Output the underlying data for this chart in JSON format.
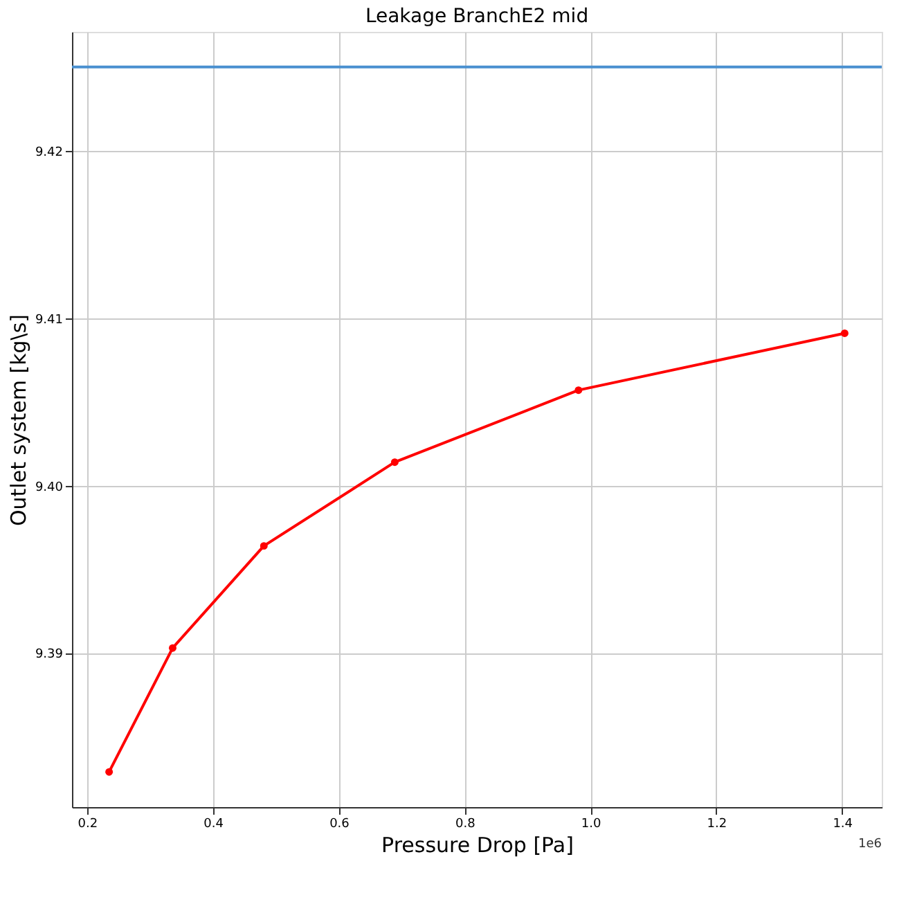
{
  "chart_data": {
    "type": "line",
    "title": "Leakage BranchE2 mid",
    "xlabel": "Pressure Drop [Pa]",
    "ylabel": "Outlet system [kg\\s]",
    "x": [
      0.235,
      0.336,
      0.481,
      0.689,
      0.981,
      1.404
    ],
    "series": [
      {
        "color": "#ff0000",
        "values": [
          9.3829,
          9.3903,
          9.3964,
          9.4014,
          9.4057,
          9.4091
        ]
      }
    ],
    "xlim": [
      0.176,
      1.463
    ],
    "xticks": [
      {
        "value": 0.2,
        "label": "0.2"
      },
      {
        "value": 0.4,
        "label": "0.4"
      },
      {
        "value": 0.6,
        "label": "0.6"
      },
      {
        "value": 0.8,
        "label": "0.8"
      },
      {
        "value": 1.0,
        "label": "1.0"
      },
      {
        "value": 1.2,
        "label": "1.2"
      },
      {
        "value": 1.4,
        "label": "1.4"
      }
    ],
    "ylim": [
      9.3808,
      9.4271
    ],
    "yticks": [
      9.39,
      {
        "value": 9.4,
        "label": "9.40"
      },
      9.41,
      9.42
    ],
    "ref_lines": [
      {
        "axis": "y",
        "value": 9.425,
        "color": "#4a90d0"
      }
    ],
    "annotations": [
      "1e6"
    ],
    "grid": true,
    "marker": "circle",
    "line_style": "solid"
  }
}
